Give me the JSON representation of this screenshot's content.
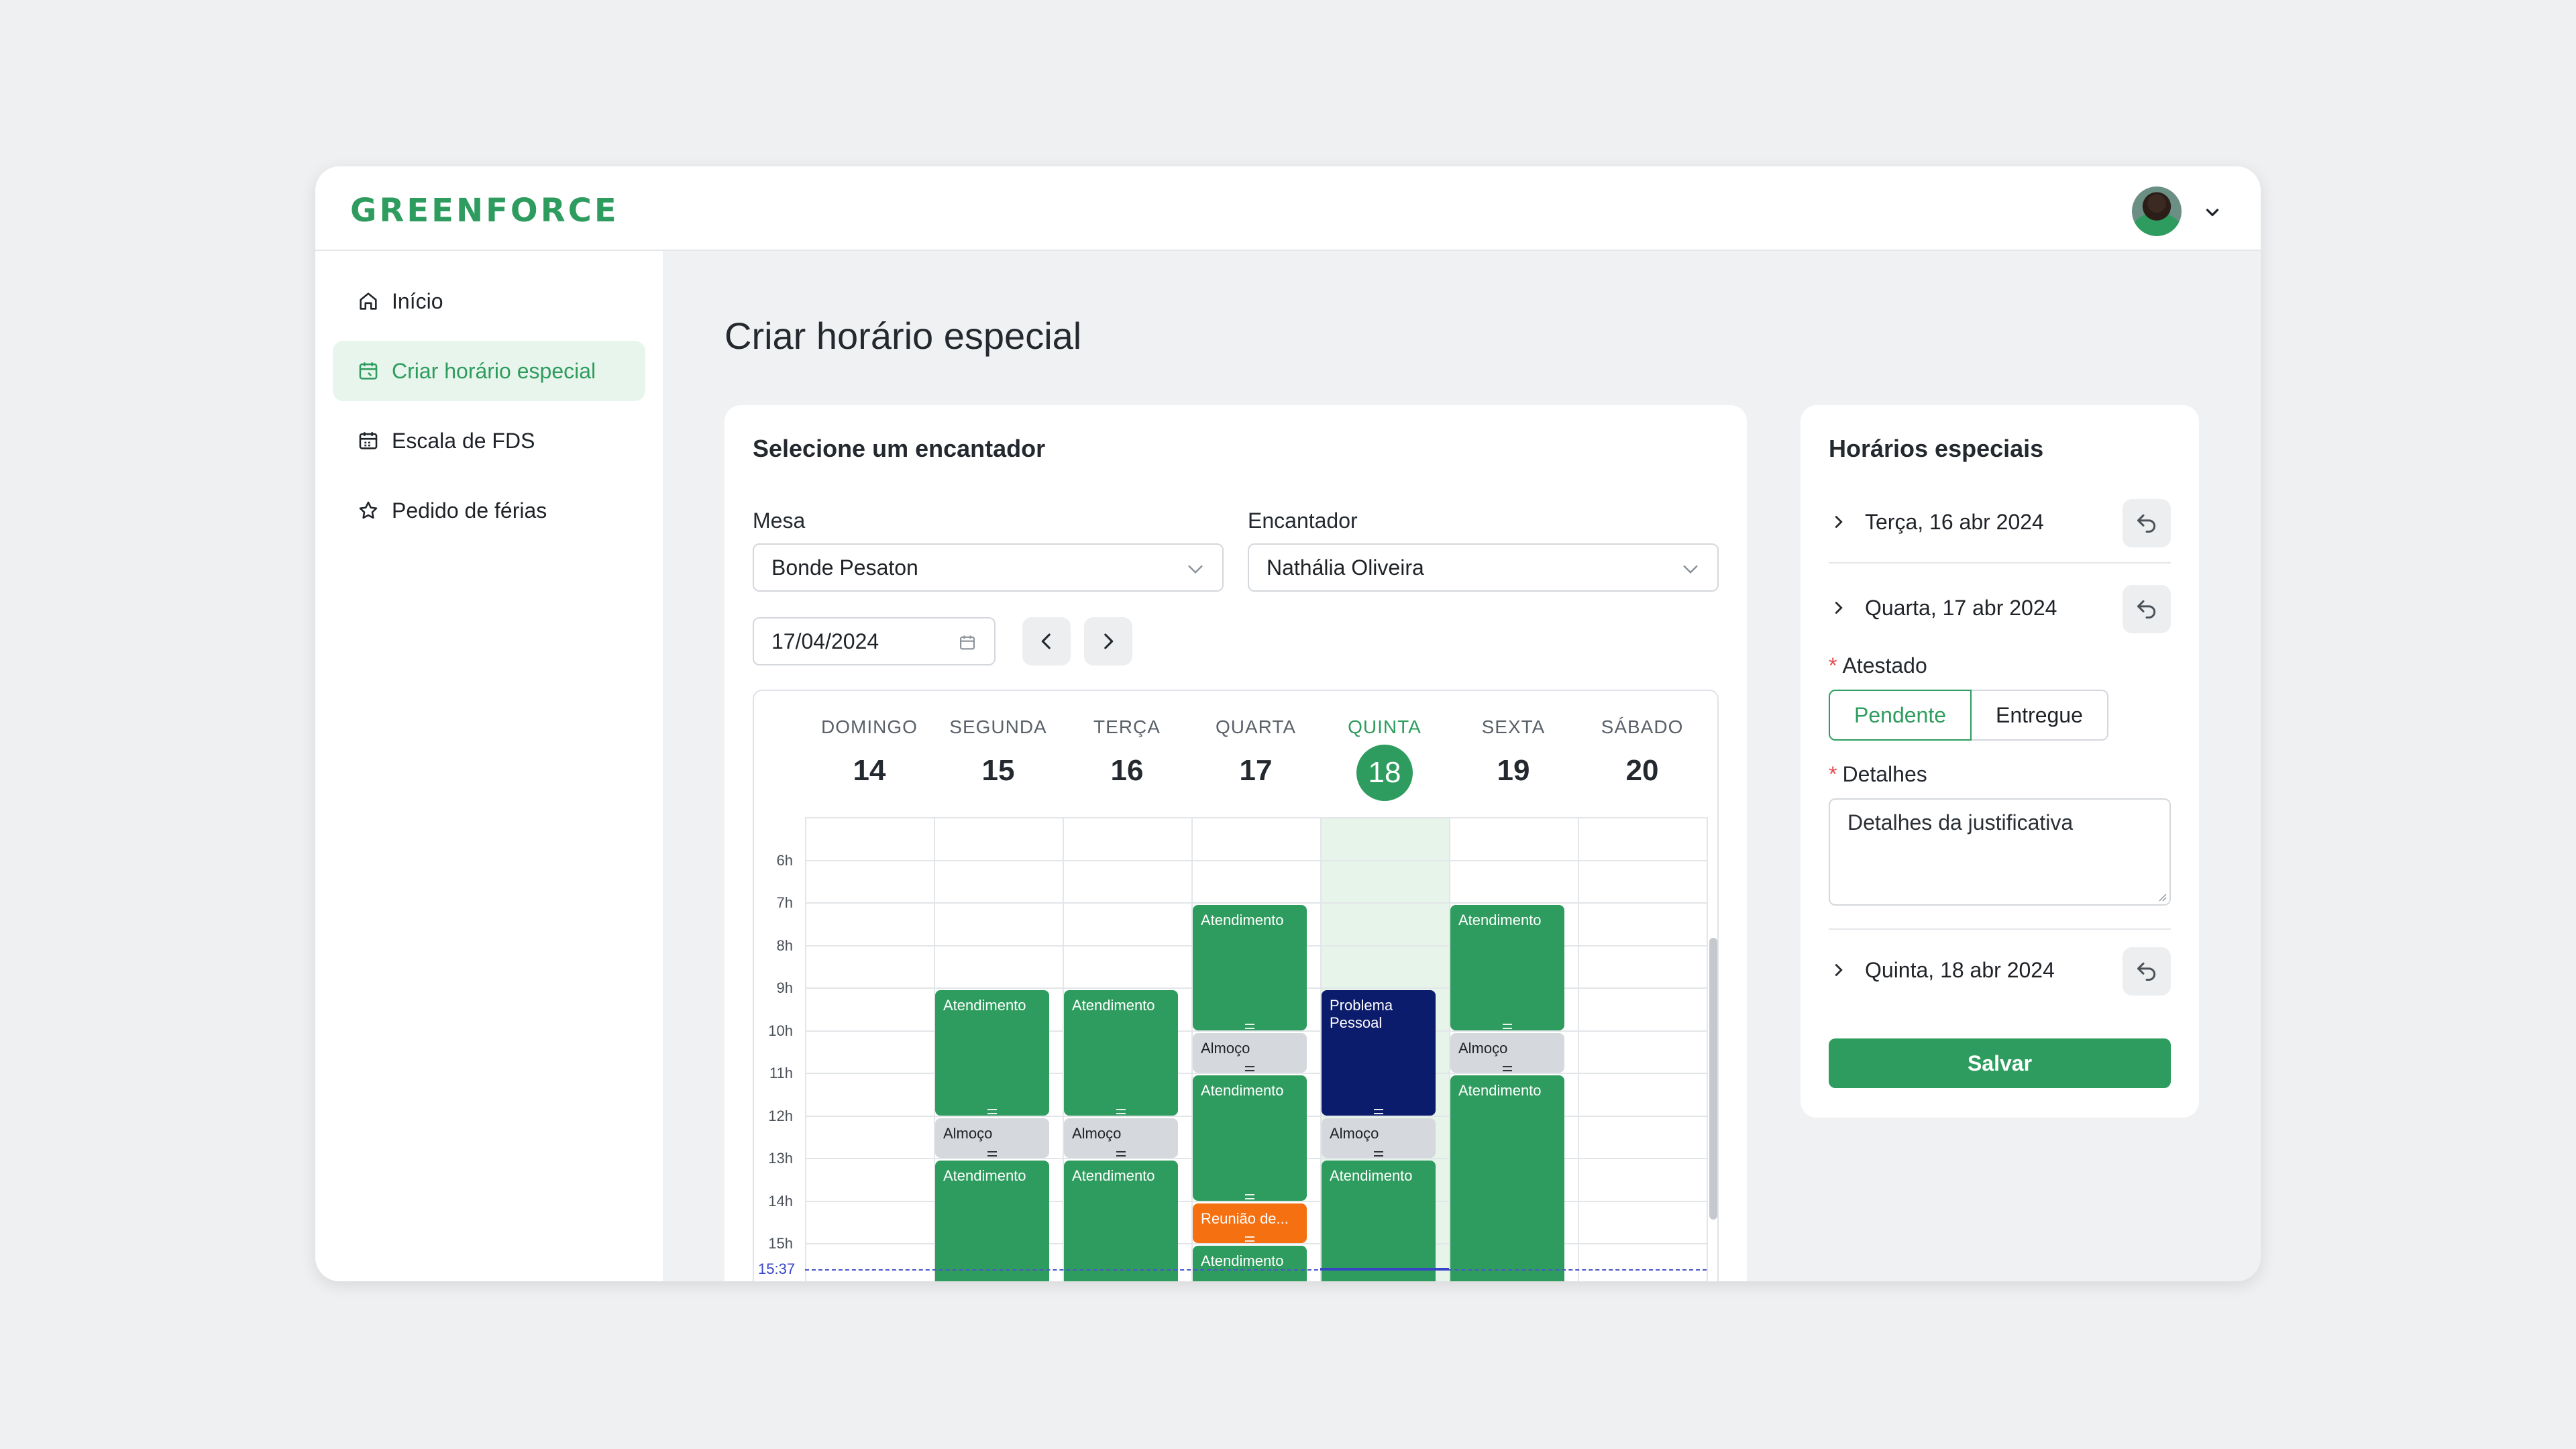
{
  "app": {
    "logo": "GREENFORCE"
  },
  "colors": {
    "brand": "#2e9c5e",
    "navy_event": "#0c1c6c",
    "orange_event": "#f57010",
    "grey_event": "#d5d8dc",
    "now_line": "#3844c7"
  },
  "sidebar": {
    "items": [
      {
        "label": "Início",
        "icon": "home-icon",
        "active": false
      },
      {
        "label": "Criar horário especial",
        "icon": "calendar-edit-icon",
        "active": true
      },
      {
        "label": "Escala de FDS",
        "icon": "calendar-icon",
        "active": false
      },
      {
        "label": "Pedido de férias",
        "icon": "star-icon",
        "active": false
      }
    ]
  },
  "main": {
    "title": "Criar horário especial",
    "selector_card": {
      "title": "Selecione um encantador",
      "mesa_label": "Mesa",
      "mesa_value": "Bonde Pesaton",
      "encantador_label": "Encantador",
      "encantador_value": "Nathália Oliveira",
      "date_value": "17/04/2024"
    },
    "calendar": {
      "days": [
        {
          "name": "DOMINGO",
          "num": "14"
        },
        {
          "name": "SEGUNDA",
          "num": "15"
        },
        {
          "name": "TERÇA",
          "num": "16"
        },
        {
          "name": "QUARTA",
          "num": "17"
        },
        {
          "name": "QUINTA",
          "num": "18",
          "today": true
        },
        {
          "name": "SEXTA",
          "num": "19"
        },
        {
          "name": "SÁBADO",
          "num": "20"
        }
      ],
      "hours": [
        "6h",
        "7h",
        "8h",
        "9h",
        "10h",
        "11h",
        "12h",
        "13h",
        "14h",
        "15h"
      ],
      "now_label": "15:37",
      "events": [
        {
          "day": 1,
          "start": 9,
          "end": 12,
          "title": "Atendimento",
          "kind": "green"
        },
        {
          "day": 1,
          "start": 12,
          "end": 13,
          "title": "Almoço",
          "kind": "grey"
        },
        {
          "day": 1,
          "start": 13,
          "end": 16.5,
          "title": "Atendimento",
          "kind": "green"
        },
        {
          "day": 2,
          "start": 9,
          "end": 12,
          "title": "Atendimento",
          "kind": "green"
        },
        {
          "day": 2,
          "start": 12,
          "end": 13,
          "title": "Almoço",
          "kind": "grey"
        },
        {
          "day": 2,
          "start": 13,
          "end": 16.5,
          "title": "Atendimento",
          "kind": "green"
        },
        {
          "day": 3,
          "start": 7,
          "end": 10,
          "title": "Atendimento",
          "kind": "green"
        },
        {
          "day": 3,
          "start": 10,
          "end": 11,
          "title": "Almoço",
          "kind": "grey"
        },
        {
          "day": 3,
          "start": 11,
          "end": 14,
          "title": "Atendimento",
          "kind": "green"
        },
        {
          "day": 3,
          "start": 14,
          "end": 15,
          "title": "Reunião de...",
          "kind": "orange"
        },
        {
          "day": 3,
          "start": 15,
          "end": 16.5,
          "title": "Atendimento",
          "kind": "green"
        },
        {
          "day": 4,
          "start": 9,
          "end": 12,
          "title": "Problema Pessoal",
          "kind": "navy"
        },
        {
          "day": 4,
          "start": 12,
          "end": 13,
          "title": "Almoço",
          "kind": "grey"
        },
        {
          "day": 4,
          "start": 13,
          "end": 16.5,
          "title": "Atendimento",
          "kind": "green"
        },
        {
          "day": 5,
          "start": 7,
          "end": 10,
          "title": "Atendimento",
          "kind": "green"
        },
        {
          "day": 5,
          "start": 10,
          "end": 11,
          "title": "Almoço",
          "kind": "grey"
        },
        {
          "day": 5,
          "start": 11,
          "end": 16.5,
          "title": "Atendimento",
          "kind": "green"
        }
      ]
    }
  },
  "special": {
    "title": "Horários especiais",
    "items": [
      {
        "label": "Terça, 16 abr 2024"
      },
      {
        "label": "Quarta, 17 abr 2024"
      },
      {
        "label": "Quinta, 18 abr 2024"
      }
    ],
    "atestado_label": "Atestado",
    "atestado_options": [
      "Pendente",
      "Entregue"
    ],
    "detalhes_label": "Detalhes",
    "detalhes_value": "Detalhes da justificativa",
    "save_label": "Salvar"
  }
}
